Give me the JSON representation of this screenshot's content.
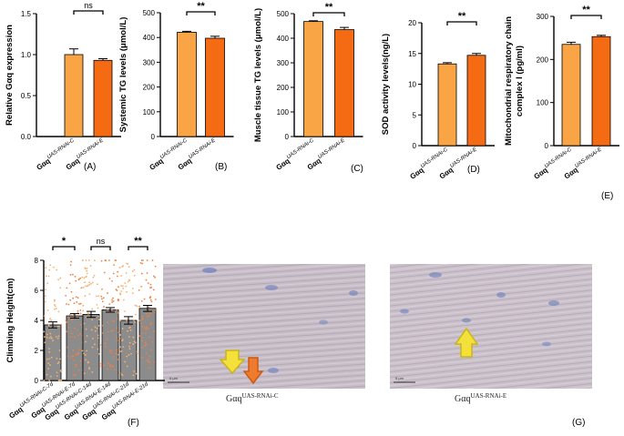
{
  "colors": {
    "bar_light": "#F9A545",
    "bar_dark": "#F56B14",
    "axis": "#000000",
    "error": "#000000",
    "dot_light": "#F7B070",
    "dot_dark": "#F08040",
    "bar_f": "#8C8C8C",
    "arrow_yellow": "#F3E03A",
    "arrow_orange": "#F07A2E",
    "tissue_bg": "#C9BFC8",
    "nucleus": "#6A7FBE"
  },
  "chart_data": [
    {
      "panel": "(A)",
      "type": "bar",
      "ylabel": "Relative Gαq expression",
      "ylim": [
        0,
        1.5
      ],
      "yticks": [
        "0.0",
        "0.5",
        "1.0",
        "1.5"
      ],
      "categories": [
        "Gαq UAS-RNAi-C",
        "Gαq UAS-RNAi-E"
      ],
      "cat_main": [
        "Gαq",
        "Gαq"
      ],
      "cat_sup": [
        "UAS-RNAi-C",
        "UAS-RNAi-E"
      ],
      "values": [
        1.0,
        0.93
      ],
      "errors": [
        0.07,
        0.02
      ],
      "significance": "ns"
    },
    {
      "panel": "(B)",
      "type": "bar",
      "ylabel": "Systemic TG levels (μmol/L)",
      "ylim": [
        0,
        500
      ],
      "yticks": [
        "0",
        "100",
        "200",
        "300",
        "400",
        "500"
      ],
      "categories": [
        "Gαq UAS-RNAi-C",
        "Gαq UAS-RNAi-E"
      ],
      "cat_main": [
        "Gαq",
        "Gαq"
      ],
      "cat_sup": [
        "UAS-RNAi-C",
        "UAS-RNAi-E"
      ],
      "values": [
        421,
        397
      ],
      "errors": [
        4,
        8
      ],
      "significance": "**"
    },
    {
      "panel": "(C)",
      "type": "bar",
      "ylabel": "Muscle tissue TG levels (μmol/L)",
      "ylim": [
        0,
        500
      ],
      "yticks": [
        "0",
        "100",
        "200",
        "300",
        "400",
        "500"
      ],
      "categories": [
        "Gαq UAS-RNAi-C",
        "Gαq UAS-RNAi-E"
      ],
      "cat_main": [
        "Gαq",
        "Gαq"
      ],
      "cat_sup": [
        "UAS-RNAi-C",
        "UAS-RNAi-E"
      ],
      "values": [
        468,
        435
      ],
      "errors": [
        3,
        9
      ],
      "significance": "**"
    },
    {
      "panel": "(D)",
      "type": "bar",
      "ylabel": "SOD activity levels(ng/L)",
      "ylim": [
        0,
        20
      ],
      "yticks": [
        "0",
        "5",
        "10",
        "15",
        "20"
      ],
      "categories": [
        "Gαq UAS-RNAi-C",
        "Gαq UAS-RNAi-E"
      ],
      "cat_main": [
        "Gαq",
        "Gαq"
      ],
      "cat_sup": [
        "UAS-RNAi-C",
        "UAS-RNAi-E"
      ],
      "values": [
        13.3,
        14.7
      ],
      "errors": [
        0.2,
        0.3
      ],
      "significance": "**"
    },
    {
      "panel": "(E)",
      "type": "bar",
      "ylabel": "Mitochondrial respiratory chain complex I (pg/ml)",
      "ylabel_lines": [
        "Mitochondrial respiratory chain",
        "complex I (pg/ml)"
      ],
      "ylim": [
        0,
        300
      ],
      "yticks": [
        "0",
        "100",
        "200",
        "300"
      ],
      "categories": [
        "Gαq UAS-RNAi-C",
        "Gαq UAS-RNAi-E"
      ],
      "cat_main": [
        "Gαq",
        "Gαq"
      ],
      "cat_sup": [
        "UAS-RNAi-C",
        "UAS-RNAi-E"
      ],
      "values": [
        235,
        253
      ],
      "errors": [
        5,
        3
      ],
      "significance": "**"
    },
    {
      "panel": "(F)",
      "type": "bar",
      "ylabel": "Climbing Height(cm)",
      "ylim": [
        0,
        8
      ],
      "yticks": [
        "0",
        "2",
        "4",
        "6",
        "8"
      ],
      "categories": [
        "Gαq UAS-RNAi-C-7d",
        "Gαq UAS-RNAi-E-7d",
        "Gαq UAS-RNAi-C-14d",
        "Gαq UAS-RNAi-E-14d",
        "Gαq UAS-RNAi-C-21d",
        "Gαq UAS-RNAi-E-21d"
      ],
      "cat_main": [
        "Gαq",
        "Gαq",
        "Gαq",
        "Gαq",
        "Gαq",
        "Gαq"
      ],
      "cat_sup": [
        "UAS-RNAi-C-7d",
        "UAS-RNAi-E-7d",
        "UAS-RNAi-C-14d",
        "UAS-RNAi-E-14d",
        "UAS-RNAi-C-21d",
        "UAS-RNAi-E-21d"
      ],
      "values": [
        3.7,
        4.3,
        4.4,
        4.7,
        4.0,
        4.8
      ],
      "errors": [
        0.2,
        0.15,
        0.2,
        0.15,
        0.25,
        0.2
      ],
      "comparisons": [
        {
          "pair": [
            0,
            1
          ],
          "label": "*"
        },
        {
          "pair": [
            2,
            3
          ],
          "label": "ns"
        },
        {
          "pair": [
            4,
            5
          ],
          "label": "**"
        }
      ]
    }
  ],
  "micrographs": [
    {
      "panel": "(G)",
      "caption_main": "Gαq",
      "caption_sup": "UAS-RNAi-C",
      "scale_label": "5 μm"
    },
    {
      "panel": "(G)",
      "caption_main": "Gαq",
      "caption_sup": "UAS-RNAi-E",
      "scale_label": "5 μm"
    }
  ]
}
